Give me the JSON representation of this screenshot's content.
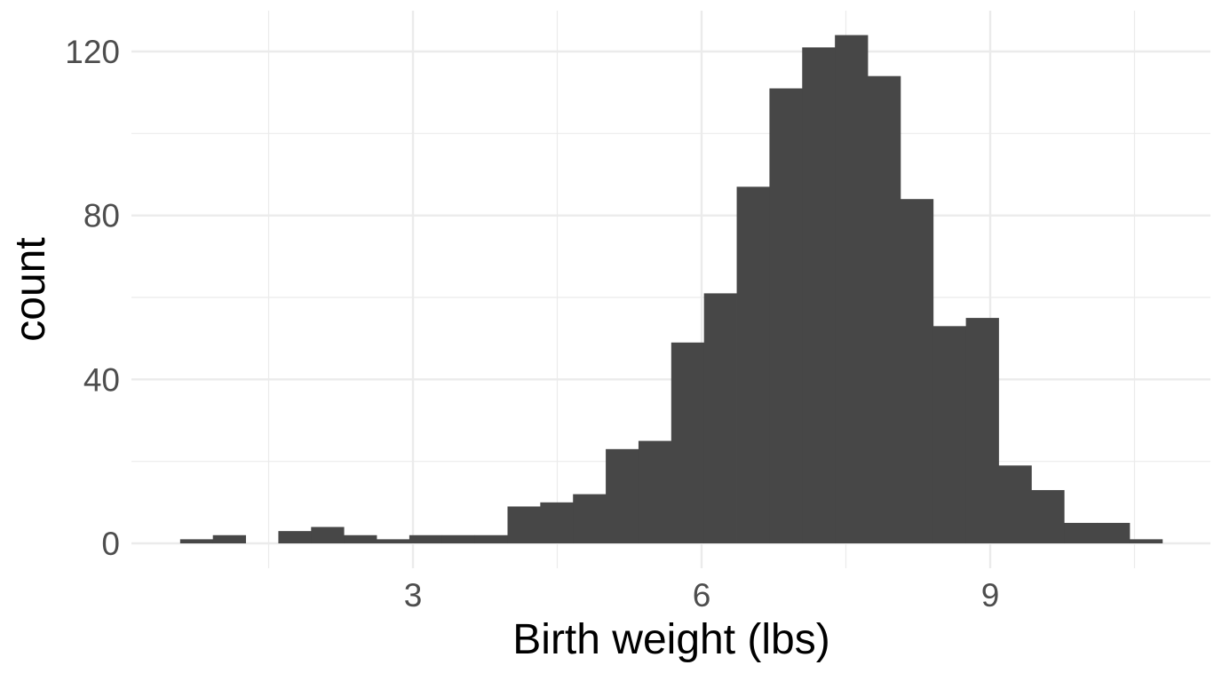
{
  "chart_data": {
    "type": "bar",
    "subtype": "histogram",
    "title": "",
    "xlabel": "Birth weight (lbs)",
    "ylabel": "count",
    "xlim": [
      0.3,
      11.07
    ],
    "ylim": [
      -6.2,
      130.2
    ],
    "x_ticks": [
      3,
      6,
      9
    ],
    "x_tick_labels": [
      "3",
      "6",
      "9"
    ],
    "x_minor_ticks": [
      1.5,
      4.5,
      7.5,
      10.5
    ],
    "y_ticks": [
      0,
      40,
      80,
      120
    ],
    "y_tick_labels": [
      "0",
      "40",
      "80",
      "120"
    ],
    "y_minor_ticks": [
      20,
      60,
      100
    ],
    "grid": true,
    "legend": "none",
    "bins": 30,
    "bin_start": 0.58,
    "bin_width": 0.3403,
    "values": [
      1,
      2,
      0,
      3,
      4,
      2,
      1,
      2,
      2,
      2,
      9,
      10,
      12,
      23,
      25,
      49,
      61,
      87,
      111,
      121,
      124,
      114,
      84,
      53,
      55,
      19,
      13,
      5,
      5,
      1
    ],
    "colors": {
      "bar": "#474747",
      "grid": "#ebebeb",
      "tick_text": "#4d4d4d",
      "title_text": "#000000",
      "background": "#ffffff"
    }
  }
}
